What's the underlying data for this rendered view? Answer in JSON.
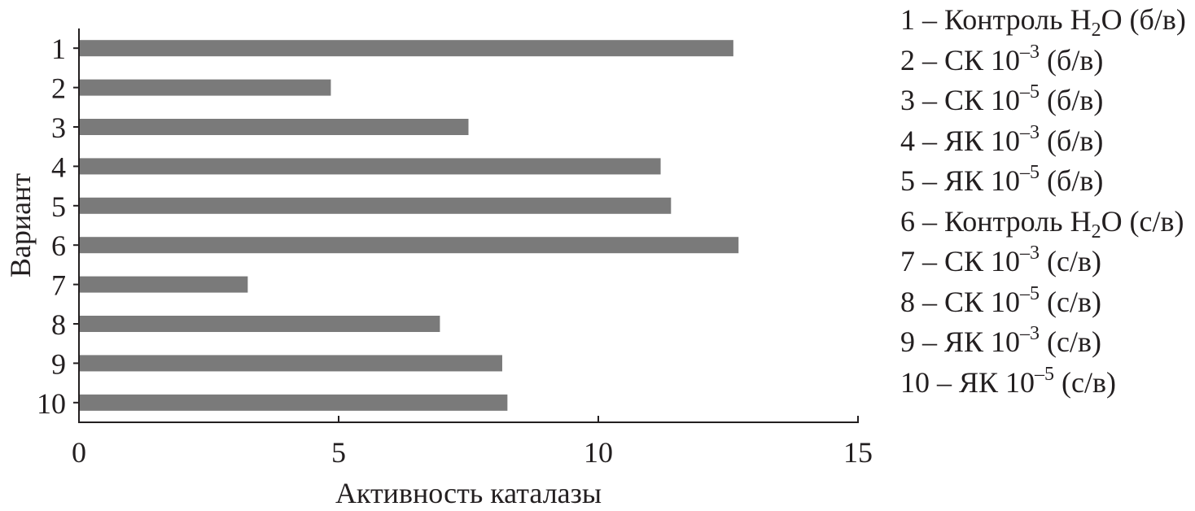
{
  "chart_data": {
    "type": "bar",
    "orientation": "horizontal",
    "categories": [
      "1",
      "2",
      "3",
      "4",
      "5",
      "6",
      "7",
      "8",
      "9",
      "10"
    ],
    "values": [
      12.6,
      4.85,
      7.5,
      11.2,
      11.4,
      12.7,
      3.25,
      6.95,
      8.15,
      8.25
    ],
    "xlabel": "Активность каталазы",
    "ylabel": "Вариант",
    "xlim": [
      0,
      15
    ],
    "xticks": [
      "0",
      "5",
      "10",
      "15"
    ],
    "bar_color": "#7a7a7a",
    "grid": false,
    "legend_position": "right",
    "legend": [
      [
        "1 –  Контроль H",
        {
          "sub": "2"
        },
        "O (б/в)"
      ],
      [
        "2 – СК 10",
        {
          "sup": "–3"
        },
        " (б/в)"
      ],
      [
        "3 – СК 10",
        {
          "sup": "–5"
        },
        " (б/в)"
      ],
      [
        "4 – ЯК 10",
        {
          "sup": "–3"
        },
        " (б/в)"
      ],
      [
        "5 – ЯК 10",
        {
          "sup": "–5"
        },
        " (б/в)"
      ],
      [
        "6 –  Контроль H",
        {
          "sub": "2"
        },
        "O (с/в)"
      ],
      [
        "7 – СК 10",
        {
          "sup": "–3"
        },
        " (с/в)"
      ],
      [
        "8 – СК 10",
        {
          "sup": "–5"
        },
        " (с/в)"
      ],
      [
        "9 – ЯК 10",
        {
          "sup": "–3"
        },
        " (с/в)"
      ],
      [
        "10 – ЯК 10",
        {
          "sup": "–5"
        },
        " (с/в)"
      ]
    ]
  }
}
